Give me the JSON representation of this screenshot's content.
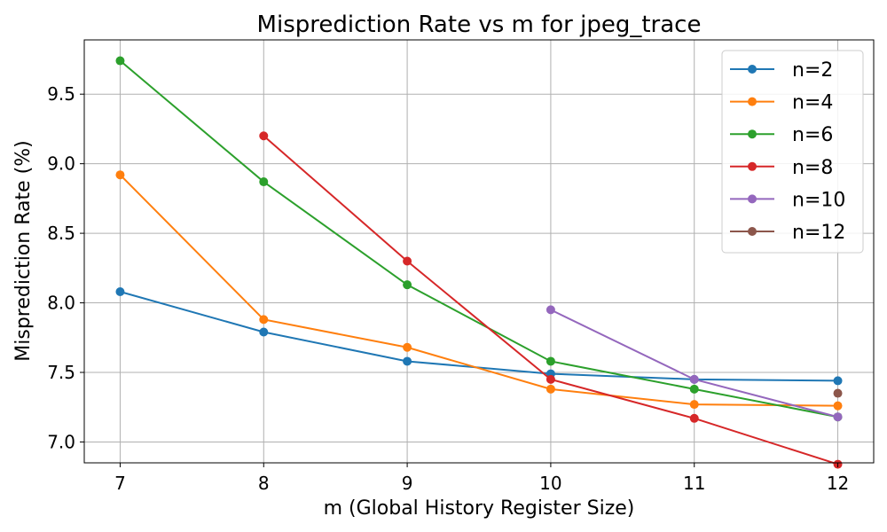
{
  "chart_data": {
    "type": "line",
    "title": "Misprediction Rate vs m for jpeg_trace",
    "xlabel": "m (Global History Register Size)",
    "ylabel": "Misprediction Rate (%)",
    "x_ticks": [
      7,
      8,
      9,
      10,
      11,
      12
    ],
    "y_ticks": [
      7.0,
      7.5,
      8.0,
      8.5,
      9.0,
      9.5
    ],
    "xlim": [
      6.75,
      12.25
    ],
    "ylim": [
      6.85,
      9.89
    ],
    "grid": true,
    "legend_position": "top-right",
    "series": [
      {
        "name": "n=2",
        "color": "#1f77b4",
        "x": [
          7,
          8,
          9,
          10,
          11,
          12
        ],
        "values": [
          8.08,
          7.79,
          7.58,
          7.49,
          7.45,
          7.44
        ]
      },
      {
        "name": "n=4",
        "color": "#ff7f0e",
        "x": [
          7,
          8,
          9,
          10,
          11,
          12
        ],
        "values": [
          8.92,
          7.88,
          7.68,
          7.38,
          7.27,
          7.26
        ]
      },
      {
        "name": "n=6",
        "color": "#2ca02c",
        "x": [
          7,
          8,
          9,
          10,
          11,
          12
        ],
        "values": [
          9.74,
          8.87,
          8.13,
          7.58,
          7.38,
          7.18
        ]
      },
      {
        "name": "n=8",
        "color": "#d62728",
        "x": [
          8,
          9,
          10,
          11,
          12
        ],
        "values": [
          9.2,
          8.3,
          7.45,
          7.17,
          6.84
        ]
      },
      {
        "name": "n=10",
        "color": "#9467bd",
        "x": [
          10,
          11,
          12
        ],
        "values": [
          7.95,
          7.45,
          7.18
        ]
      },
      {
        "name": "n=12",
        "color": "#8c564b",
        "x": [
          12
        ],
        "values": [
          7.35
        ]
      }
    ]
  }
}
